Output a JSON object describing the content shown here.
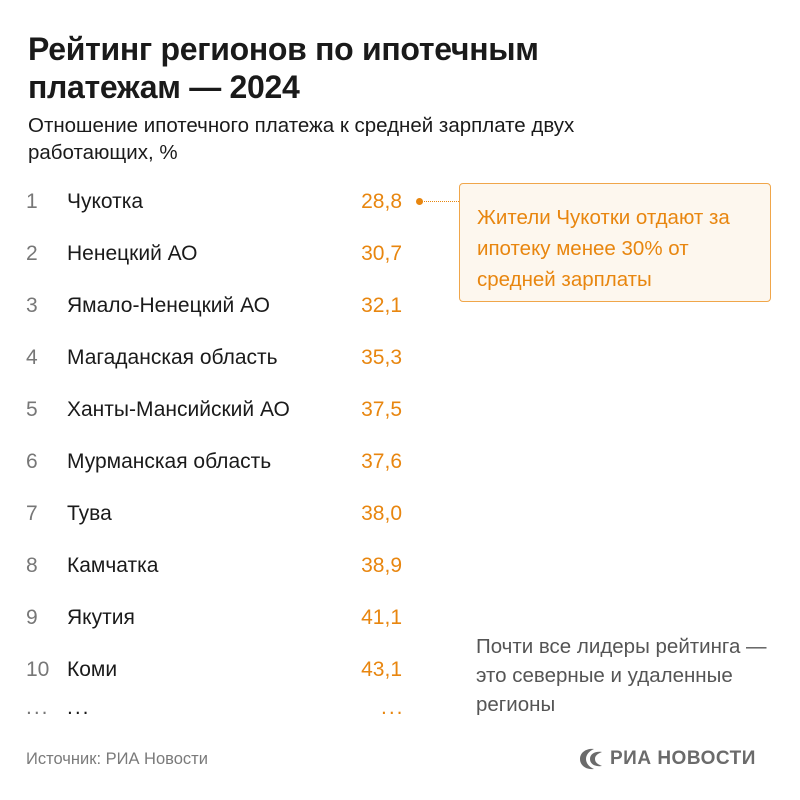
{
  "title": "Рейтинг регионов по ипотечным платежам — 2024",
  "subtitle": "Отношение ипотечного платежа к средней зарплате двух работающих, %",
  "chart_data": {
    "type": "table",
    "columns": [
      "rank",
      "region",
      "value"
    ],
    "rows": [
      {
        "rank": "1",
        "region": "Чукотка",
        "value": "28,8"
      },
      {
        "rank": "2",
        "region": "Ненецкий АО",
        "value": "30,7"
      },
      {
        "rank": "3",
        "region": "Ямало-Ненецкий АО",
        "value": "32,1"
      },
      {
        "rank": "4",
        "region": "Магаданская область",
        "value": "35,3"
      },
      {
        "rank": "5",
        "region": "Ханты-Мансийский АО",
        "value": "37,5"
      },
      {
        "rank": "6",
        "region": "Мурманская область",
        "value": "37,6"
      },
      {
        "rank": "7",
        "region": "Тува",
        "value": "38,0"
      },
      {
        "rank": "8",
        "region": "Камчатка",
        "value": "38,9"
      },
      {
        "rank": "9",
        "region": "Якутия",
        "value": "41,1"
      },
      {
        "rank": "10",
        "region": "Коми",
        "value": "43,1"
      }
    ],
    "ellipsis": "...",
    "annotation": "Жители Чукотки отдают за ипотеку менее 30% от средней зарплаты",
    "accent_color": "#e8860f"
  },
  "note": "Почти все лидеры рейтинга — это северные и удаленные регионы",
  "source": "Источник: РИА Новости",
  "logo": {
    "text": "РИА НОВОСТИ",
    "icon": "ria-novosti-logo-icon"
  }
}
